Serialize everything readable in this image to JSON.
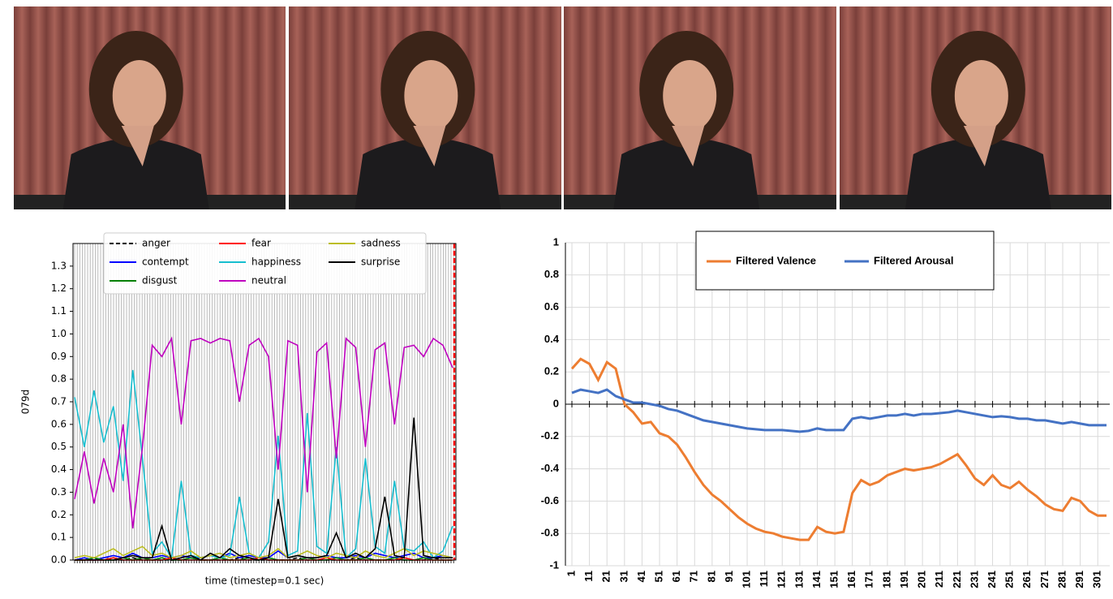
{
  "chart_data": [
    {
      "type": "line",
      "ylabel": "079d",
      "xlabel": "time (timestep=0.1 sec)",
      "ylim": [
        0,
        1.4
      ],
      "yticks": [
        {
          "value": 0,
          "label": "0.0"
        },
        0.1,
        0.2,
        0.3,
        0.4,
        0.5,
        0.6,
        0.7,
        0.8,
        0.9,
        {
          "value": 1,
          "label": "1.0"
        },
        1.1,
        1.2,
        1.3
      ],
      "legend": "top",
      "series": [
        {
          "name": "anger",
          "color": "#000000",
          "style": "dashed",
          "values": [
            0,
            0,
            0,
            0.01,
            0,
            0,
            0.01,
            0,
            0,
            0,
            0,
            0,
            0.01,
            0,
            0,
            0,
            0,
            0.01,
            0,
            0,
            0,
            0,
            0,
            0.01,
            0,
            0,
            0,
            0,
            0,
            0.01,
            0,
            0,
            0,
            0,
            0,
            0,
            0,
            0.01,
            0,
            0
          ]
        },
        {
          "name": "contempt",
          "color": "#0000ff",
          "style": "solid",
          "values": [
            0,
            0.01,
            0,
            0.01,
            0.02,
            0.01,
            0.03,
            0.01,
            0.01,
            0.02,
            0.01,
            0.02,
            0.01,
            0.01,
            0.02,
            0.01,
            0.03,
            0.01,
            0.02,
            0.01,
            0.01,
            0.04,
            0.01,
            0.02,
            0.01,
            0.01,
            0.02,
            0.01,
            0.01,
            0.02,
            0.01,
            0.03,
            0.02,
            0.01,
            0.02,
            0.03,
            0.01,
            0.01,
            0.02,
            0.01
          ]
        },
        {
          "name": "disgust",
          "color": "#008000",
          "style": "solid",
          "values": [
            0,
            0,
            0.01,
            0,
            0,
            0.01,
            0,
            0.01,
            0,
            0.01,
            0,
            0,
            0.01,
            0,
            0,
            0.01,
            0,
            0,
            0.01,
            0,
            0.01,
            0,
            0,
            0,
            0.01,
            0,
            0,
            0.01,
            0,
            0,
            0.01,
            0,
            0,
            0.01,
            0,
            0,
            0.01,
            0,
            0,
            0
          ]
        },
        {
          "name": "fear",
          "color": "#ff0000",
          "style": "solid",
          "values": [
            0,
            0,
            0,
            0,
            0.01,
            0,
            0,
            0,
            0,
            0,
            0.01,
            0,
            0,
            0,
            0,
            0,
            0,
            0,
            0,
            0.01,
            0,
            0,
            0,
            0,
            0,
            0,
            0.01,
            0,
            0,
            0,
            0,
            0,
            0,
            0,
            0.01,
            0,
            0,
            0,
            0,
            0
          ]
        },
        {
          "name": "happiness",
          "color": "#17becf",
          "style": "solid",
          "values": [
            0.72,
            0.5,
            0.75,
            0.52,
            0.68,
            0.35,
            0.84,
            0.45,
            0.03,
            0.08,
            0.01,
            0.35,
            0.02,
            0.01,
            0.02,
            0.01,
            0.02,
            0.28,
            0.03,
            0.01,
            0.08,
            0.55,
            0.02,
            0.04,
            0.65,
            0.06,
            0.03,
            0.5,
            0.01,
            0.05,
            0.45,
            0.06,
            0.03,
            0.35,
            0.05,
            0.04,
            0.08,
            0.01,
            0.04,
            0.15
          ]
        },
        {
          "name": "neutral",
          "color": "#bf00bf",
          "style": "solid",
          "values": [
            0.27,
            0.48,
            0.25,
            0.45,
            0.3,
            0.6,
            0.14,
            0.5,
            0.95,
            0.9,
            0.98,
            0.6,
            0.97,
            0.98,
            0.96,
            0.98,
            0.97,
            0.7,
            0.95,
            0.98,
            0.9,
            0.4,
            0.97,
            0.95,
            0.3,
            0.92,
            0.96,
            0.45,
            0.98,
            0.94,
            0.5,
            0.93,
            0.96,
            0.6,
            0.94,
            0.95,
            0.9,
            0.98,
            0.95,
            0.85
          ]
        },
        {
          "name": "sadness",
          "color": "#bcbd22",
          "style": "solid",
          "values": [
            0.01,
            0.02,
            0.01,
            0.03,
            0.05,
            0.02,
            0.04,
            0.06,
            0.02,
            0.03,
            0.01,
            0.02,
            0.04,
            0.01,
            0.02,
            0.03,
            0.01,
            0.02,
            0.03,
            0.01,
            0.02,
            0.05,
            0.01,
            0.02,
            0.04,
            0.02,
            0.01,
            0.03,
            0.02,
            0.01,
            0.04,
            0.02,
            0.01,
            0.03,
            0.05,
            0.02,
            0.04,
            0.03,
            0.02,
            0.01
          ]
        },
        {
          "name": "surprise",
          "color": "#000000",
          "style": "solid",
          "values": [
            0,
            0,
            0,
            0,
            0,
            0.01,
            0.02,
            0.01,
            0.01,
            0.15,
            0,
            0.01,
            0.02,
            0,
            0.03,
            0.01,
            0.05,
            0.02,
            0.01,
            0,
            0.01,
            0.27,
            0.01,
            0.02,
            0.01,
            0.01,
            0.02,
            0.12,
            0.01,
            0.03,
            0.01,
            0.05,
            0.28,
            0.02,
            0.01,
            0.63,
            0.02,
            0.01,
            0.01,
            0.01
          ]
        }
      ]
    },
    {
      "type": "line",
      "ylim": [
        -1,
        1
      ],
      "yticks": [
        -1,
        -0.8,
        -0.6,
        -0.4,
        -0.2,
        0,
        0.2,
        0.4,
        0.6,
        0.8,
        1
      ],
      "xlim": [
        1,
        306
      ],
      "xticks": [
        1,
        11,
        21,
        31,
        41,
        51,
        61,
        71,
        81,
        91,
        101,
        111,
        121,
        131,
        141,
        151,
        161,
        171,
        181,
        191,
        201,
        211,
        221,
        231,
        241,
        251,
        261,
        271,
        281,
        291,
        301
      ],
      "grid": true,
      "legend": "top",
      "x": [
        1,
        6,
        11,
        16,
        21,
        26,
        31,
        36,
        41,
        46,
        51,
        56,
        61,
        66,
        71,
        76,
        81,
        86,
        91,
        96,
        101,
        106,
        111,
        116,
        121,
        126,
        131,
        136,
        141,
        146,
        151,
        156,
        161,
        166,
        171,
        176,
        181,
        186,
        191,
        196,
        201,
        206,
        211,
        216,
        221,
        226,
        231,
        236,
        241,
        246,
        251,
        256,
        261,
        266,
        271,
        276,
        281,
        286,
        291,
        296,
        301,
        306
      ],
      "series": [
        {
          "name": "Filtered Valence",
          "color": "#ed7d31",
          "values": [
            0.22,
            0.28,
            0.25,
            0.15,
            0.26,
            0.22,
            0,
            -0.05,
            -0.12,
            -0.11,
            -0.18,
            -0.2,
            -0.25,
            -0.33,
            -0.42,
            -0.5,
            -0.56,
            -0.6,
            -0.65,
            -0.7,
            -0.74,
            -0.77,
            -0.79,
            -0.8,
            -0.82,
            -0.83,
            -0.84,
            -0.84,
            -0.76,
            -0.79,
            -0.8,
            -0.79,
            -0.55,
            -0.47,
            -0.5,
            -0.48,
            -0.44,
            -0.42,
            -0.4,
            -0.41,
            -0.4,
            -0.39,
            -0.37,
            -0.34,
            -0.31,
            -0.38,
            -0.46,
            -0.5,
            -0.44,
            -0.5,
            -0.52,
            -0.48,
            -0.53,
            -0.57,
            -0.62,
            -0.65,
            -0.66,
            -0.58,
            -0.6,
            -0.66,
            -0.69,
            -0.69
          ]
        },
        {
          "name": "Filtered Arousal",
          "color": "#4472c4",
          "values": [
            0.07,
            0.09,
            0.08,
            0.07,
            0.09,
            0.05,
            0.03,
            0.01,
            0.01,
            0,
            -0.01,
            -0.03,
            -0.04,
            -0.06,
            -0.08,
            -0.1,
            -0.11,
            -0.12,
            -0.13,
            -0.14,
            -0.15,
            -0.155,
            -0.16,
            -0.16,
            -0.16,
            -0.165,
            -0.17,
            -0.165,
            -0.15,
            -0.16,
            -0.16,
            -0.16,
            -0.09,
            -0.08,
            -0.09,
            -0.08,
            -0.07,
            -0.07,
            -0.06,
            -0.07,
            -0.06,
            -0.06,
            -0.055,
            -0.05,
            -0.04,
            -0.05,
            -0.06,
            -0.07,
            -0.08,
            -0.075,
            -0.08,
            -0.09,
            -0.09,
            -0.1,
            -0.1,
            -0.11,
            -0.12,
            -0.11,
            -0.12,
            -0.13,
            -0.13,
            -0.13
          ]
        }
      ]
    }
  ]
}
